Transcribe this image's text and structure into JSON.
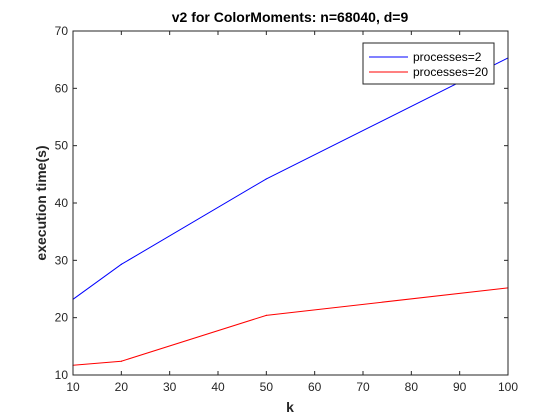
{
  "chart_data": {
    "type": "line",
    "title": "v2 for ColorMoments: n=68040, d=9",
    "xlabel": "k",
    "ylabel": "execution time(s)",
    "xlim": [
      10,
      100
    ],
    "ylim": [
      10,
      70
    ],
    "xticks": [
      10,
      20,
      30,
      40,
      50,
      60,
      70,
      80,
      90,
      100
    ],
    "yticks": [
      10,
      20,
      30,
      40,
      50,
      60,
      70
    ],
    "grid": false,
    "legend_position": "top-right",
    "series": [
      {
        "name": "processes=2",
        "color": "#0000ff",
        "x": [
          10,
          20,
          50,
          100
        ],
        "y": [
          23.2,
          29.3,
          44.2,
          65.3
        ]
      },
      {
        "name": "processes=20",
        "color": "#ff0000",
        "x": [
          10,
          20,
          50,
          100
        ],
        "y": [
          11.7,
          12.4,
          20.4,
          25.2
        ]
      }
    ]
  }
}
